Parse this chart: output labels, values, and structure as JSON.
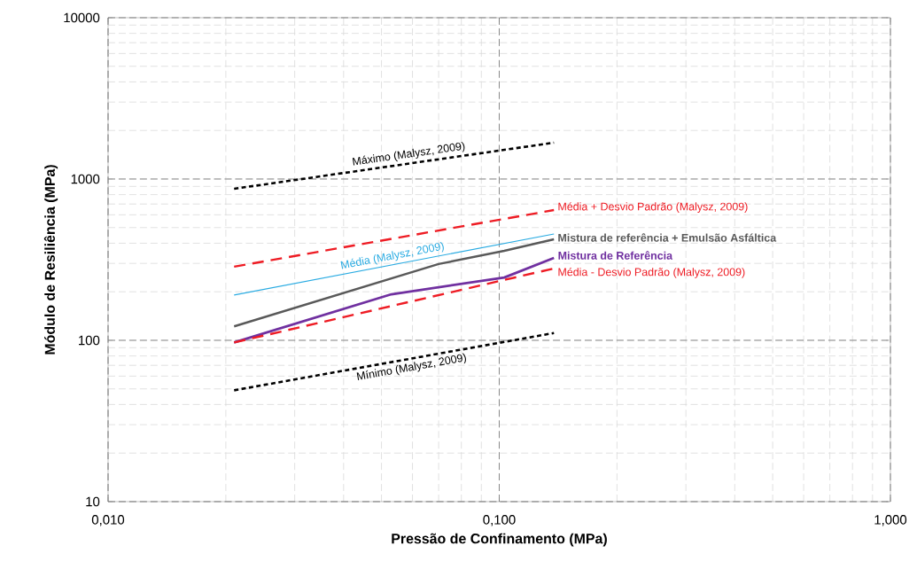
{
  "chart_data": {
    "type": "line",
    "xlabel": "Pressão de Confinamento (MPa)",
    "ylabel": "Módulo de Resiliência (MPa)",
    "log": "xy",
    "xlim": [
      0.01,
      1
    ],
    "ylim": [
      10,
      10000
    ],
    "xticks": [
      {
        "value": 0.01,
        "label": "0,010"
      },
      {
        "value": 0.1,
        "label": "0,100"
      },
      {
        "value": 1,
        "label": "1,000"
      }
    ],
    "yticks": [
      10,
      100,
      1000,
      10000
    ],
    "grid": true,
    "marker": "none",
    "series": [
      {
        "name": "Máximo (Malysz, 2009)",
        "color": "#000000",
        "line_style": "dotted",
        "x": [
          0.021,
          0.138
        ],
        "values": [
          870,
          1680
        ]
      },
      {
        "name": "Média + Desvio Padrão (Malysz, 2009)",
        "color": "#ee1c24",
        "line_style": "dashed",
        "x": [
          0.021,
          0.138
        ],
        "values": [
          286,
          642
        ]
      },
      {
        "name": "Média (Malysz, 2009)",
        "color": "#29abe2",
        "line_style": "solid",
        "x": [
          0.021,
          0.138
        ],
        "values": [
          191,
          456
        ]
      },
      {
        "name": "Mistura de referência + Emulsão Asfáltica",
        "color": "#595959",
        "line_style": "solid",
        "x": [
          0.021,
          0.07,
          0.103,
          0.138
        ],
        "values": [
          122,
          297,
          359,
          423
        ]
      },
      {
        "name": "Mistura de Referência",
        "color": "#7030a0",
        "line_style": "solid",
        "x": [
          0.021,
          0.053,
          0.103,
          0.138
        ],
        "values": [
          97,
          193,
          245,
          324
        ]
      },
      {
        "name": "Média - Desvio Padrão (Malysz, 2009)",
        "color": "#ee1c24",
        "line_style": "dashed",
        "x": [
          0.021,
          0.138
        ],
        "values": [
          97,
          279
        ]
      },
      {
        "name": "Mínimo (Malysz, 2009)",
        "color": "#000000",
        "line_style": "dotted",
        "x": [
          0.021,
          0.138
        ],
        "values": [
          49,
          111
        ]
      }
    ]
  }
}
